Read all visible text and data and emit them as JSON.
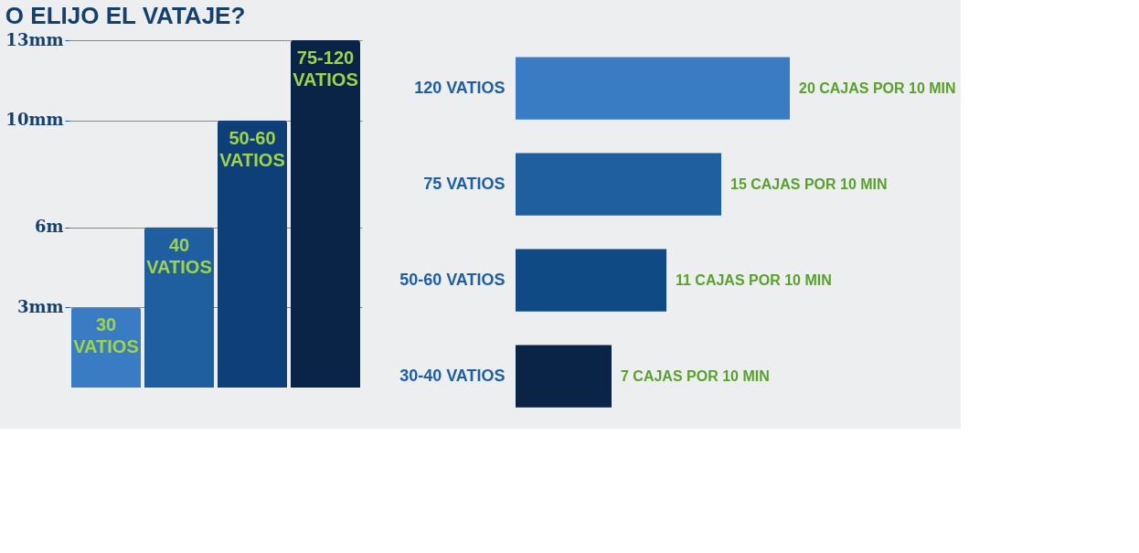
{
  "chart_data": [
    {
      "type": "bar",
      "title": "O ELIJO EL VATAJE?",
      "categories": [
        "30 VATIOS",
        "40 VATIOS",
        "50-60 VATIOS",
        "75-120 VATIOS"
      ],
      "values": [
        3,
        6,
        10,
        13
      ],
      "colors": [
        "#3a7cc4",
        "#1f5fa0",
        "#0f3f78",
        "#0a2448"
      ],
      "ylim": [
        0,
        13
      ],
      "yticks": [
        {
          "value": 3,
          "label": "3mm"
        },
        {
          "value": 6,
          "label": "6m"
        },
        {
          "value": 10,
          "label": "10mm"
        },
        {
          "value": 13,
          "label": "13mm"
        }
      ],
      "grid": "y"
    },
    {
      "type": "bar",
      "orientation": "horizontal",
      "categories": [
        "120 VATIOS",
        "75 VATIOS",
        "50-60 VATIOS",
        "30-40 VATIOS"
      ],
      "values": [
        20,
        15,
        11,
        7
      ],
      "colors": [
        "#3a7cc4",
        "#1f5fa0",
        "#0f4a85",
        "#0a2448"
      ],
      "value_labels": [
        "20 CAJAS POR 10 MIN",
        "15 CAJAS POR 10 MIN",
        "11 CAJAS POR 10 MIN",
        "7 CAJAS POR 10 MIN"
      ]
    }
  ]
}
